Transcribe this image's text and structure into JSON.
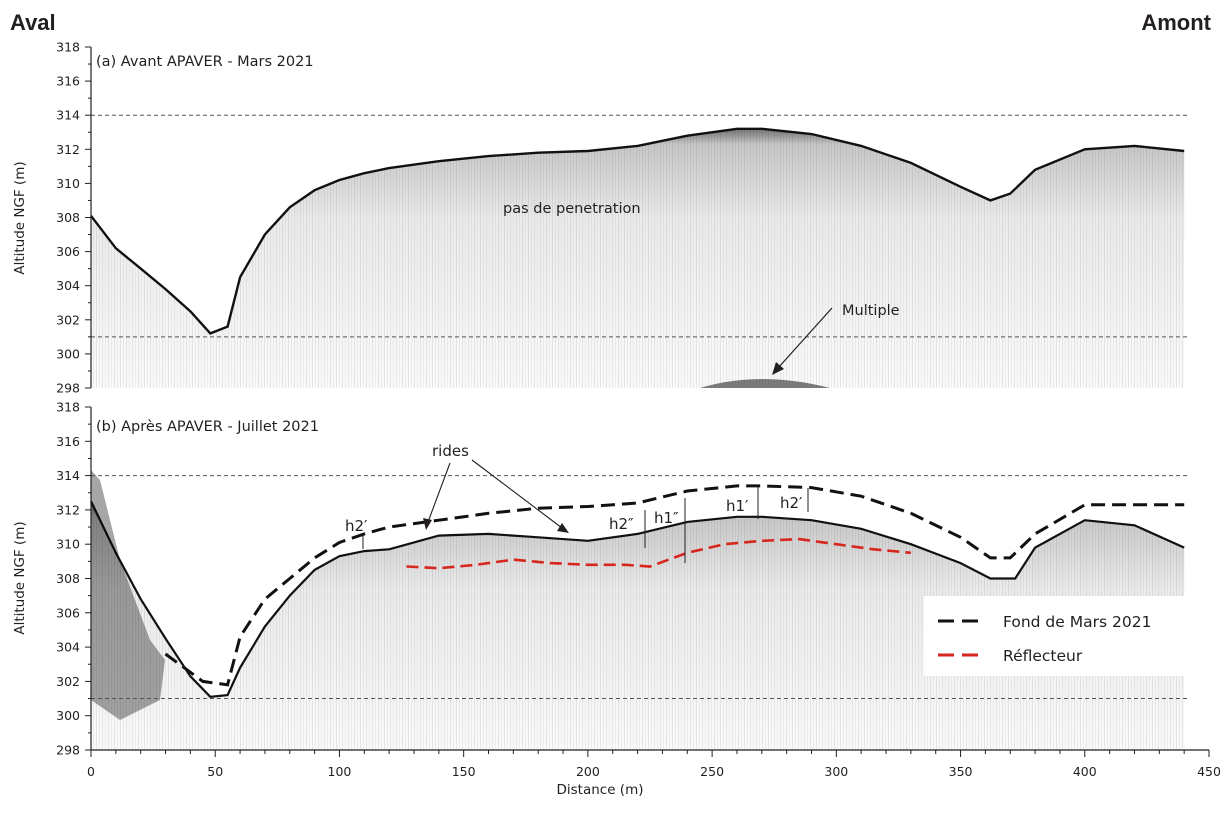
{
  "header": {
    "left": "Aval",
    "right": "Amont"
  },
  "chart_data": [
    {
      "type": "line",
      "panel": "a",
      "title": "(a) Avant APAVER - Mars 2021",
      "ylabel": "Altitude NGF (m)",
      "ylim": [
        298,
        318
      ],
      "yticks": [
        298,
        300,
        302,
        304,
        306,
        308,
        310,
        312,
        314,
        316,
        318
      ],
      "reference_lines_y": [
        314,
        301
      ],
      "series": [
        {
          "values_x": [
            0,
            10,
            20,
            30,
            40,
            48,
            55,
            60,
            70,
            80,
            90,
            100,
            110,
            120,
            140,
            160,
            180,
            200,
            220,
            240,
            260,
            270,
            290,
            310,
            330,
            350,
            362,
            370,
            380,
            400,
            420,
            440
          ],
          "values_y": [
            308.1,
            306.2,
            305,
            303.8,
            302.5,
            301.2,
            301.6,
            304.5,
            307,
            308.6,
            309.6,
            310.2,
            310.6,
            310.9,
            311.3,
            311.6,
            311.8,
            311.9,
            312.2,
            312.8,
            313.2,
            313.2,
            312.9,
            312.2,
            311.2,
            309.8,
            309.0,
            309.4,
            310.8,
            312.0,
            312.2,
            311.9
          ]
        }
      ],
      "annotations": [
        "pas de penetration",
        "Multiple"
      ]
    },
    {
      "type": "line",
      "panel": "b",
      "title": "(b) Après APAVER - Juillet 2021",
      "xlabel": "Distance (m)",
      "ylabel": "Altitude NGF (m)",
      "xlim": [
        0,
        450
      ],
      "ylim": [
        298,
        318
      ],
      "xticks": [
        0,
        50,
        100,
        150,
        200,
        250,
        300,
        350,
        400,
        450
      ],
      "yticks": [
        298,
        300,
        302,
        304,
        306,
        308,
        310,
        312,
        314,
        316,
        318
      ],
      "reference_lines_y": [
        314,
        301
      ],
      "legend_position": "bottom-right",
      "series": [
        {
          "name": "Fond de Mars 2021",
          "color": "#231f20",
          "values_x": [
            30,
            45,
            55,
            60,
            70,
            80,
            90,
            100,
            110,
            120,
            140,
            160,
            180,
            200,
            220,
            240,
            260,
            270,
            290,
            310,
            330,
            350,
            362,
            370,
            380,
            400,
            420,
            440
          ],
          "values_y": [
            303.6,
            302.0,
            301.8,
            304.6,
            306.8,
            308.0,
            309.2,
            310.1,
            310.6,
            311.0,
            311.4,
            311.8,
            312.1,
            312.2,
            312.4,
            313.1,
            313.4,
            313.4,
            313.3,
            312.8,
            311.8,
            310.4,
            309.2,
            309.2,
            310.6,
            312.3,
            312.3,
            312.3
          ]
        },
        {
          "name": "Réflecteur",
          "color": "#d7261e",
          "values_x": [
            127,
            140,
            155,
            170,
            185,
            200,
            215,
            225,
            240,
            255,
            270,
            285,
            300,
            315,
            330
          ],
          "values_y": [
            308.7,
            308.6,
            308.8,
            309.1,
            308.9,
            308.8,
            308.8,
            308.7,
            309.5,
            310.0,
            310.2,
            310.3,
            310.0,
            309.7,
            309.5
          ]
        }
      ],
      "annotations": [
        "rides",
        "h2′",
        "h2″",
        "h1″",
        "h1′",
        "h2′"
      ]
    }
  ]
}
